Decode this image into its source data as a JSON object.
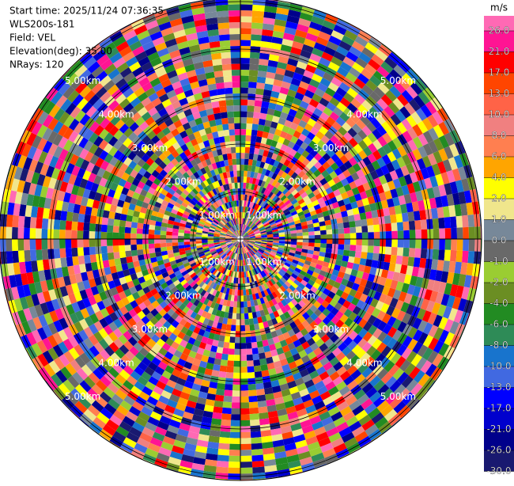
{
  "info": [
    "Start time: 2025/11/24 07:36:35",
    "WLS200s-181",
    "Field: VEL",
    "Elevation(deg): 35.00",
    "NRays: 120"
  ],
  "range_rings": [
    "1.00km",
    "2.00km",
    "3.00km",
    "4.00km",
    "5.00km"
  ],
  "colorbar": {
    "unit": "m/s",
    "top_color": "#ff69b4",
    "levels": [
      {
        "label": "26.0",
        "color": "#ff1493"
      },
      {
        "label": "21.0",
        "color": "#ff0000"
      },
      {
        "label": "17.0",
        "color": "#ff4500"
      },
      {
        "label": "13.0",
        "color": "#ff6347"
      },
      {
        "label": "10.0",
        "color": "#f08080"
      },
      {
        "label": "8.0",
        "color": "#ff7f50"
      },
      {
        "label": "6.0",
        "color": "#ffa500"
      },
      {
        "label": "4.0",
        "color": "#ffff00"
      },
      {
        "label": "2.0",
        "color": "#f0e68c"
      },
      {
        "label": "1.0",
        "color": "#778899"
      },
      {
        "label": "0.0",
        "color": "#696969"
      },
      {
        "label": "-1.0",
        "color": "#9acd32"
      },
      {
        "label": "-2.0",
        "color": "#6b8e23"
      },
      {
        "label": "-4.0",
        "color": "#228b22"
      },
      {
        "label": "-6.0",
        "color": "#2e8b57"
      },
      {
        "label": "-8.0",
        "color": "#1874cd"
      },
      {
        "label": "-10.0",
        "color": "#4169e1"
      },
      {
        "label": "-13.0",
        "color": "#0000ff"
      },
      {
        "label": "-17.0",
        "color": "#0000cd"
      },
      {
        "label": "-21.0",
        "color": "#00008b"
      },
      {
        "label": "-26.0",
        "color": "#191970"
      },
      {
        "label": "-30.0"
      }
    ]
  }
}
